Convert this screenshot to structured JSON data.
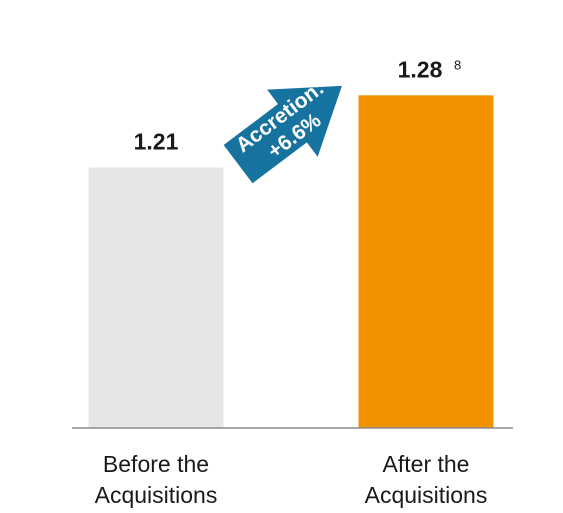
{
  "chart_data": {
    "type": "bar",
    "categories": [
      "Before the Acquisitions",
      "After the Acquisitions"
    ],
    "category_lines": [
      [
        "Before the",
        "Acquisitions"
      ],
      [
        "After the",
        "Acquisitions"
      ]
    ],
    "values": [
      1.21,
      1.28
    ],
    "value_labels": [
      "1.21",
      "1.28"
    ],
    "footnote_marker": "8",
    "bar_colors": [
      "#e6e6e6",
      "#f39200"
    ],
    "axis_color": "#8c8c8c",
    "title": "",
    "xlabel": "",
    "ylabel": "",
    "annotation": {
      "lines": [
        "Accretion:",
        "+6.6%"
      ],
      "color": "#1673a0"
    }
  }
}
